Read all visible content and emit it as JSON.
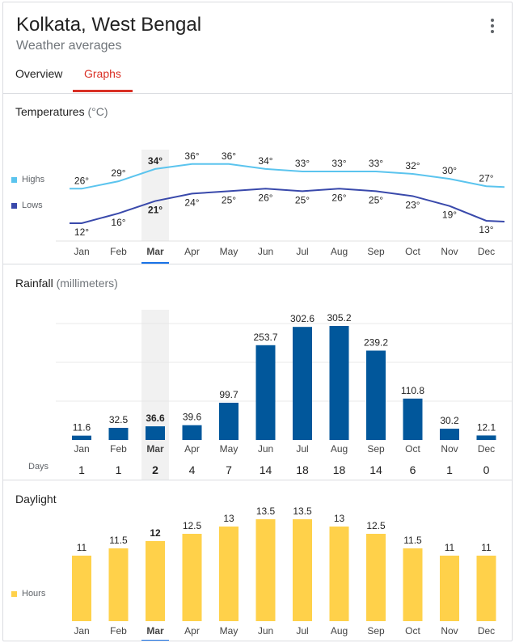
{
  "header": {
    "title": "Kolkata, West Bengal",
    "subtitle": "Weather averages",
    "tabs": [
      "Overview",
      "Graphs"
    ],
    "active_tab": "Graphs"
  },
  "colors": {
    "highs": "#5bc4ee",
    "lows": "#3949ab",
    "rain": "#01579b",
    "daylight": "#ffd14a",
    "selected_underline": "#1a73e8",
    "tab_active": "#d93025"
  },
  "months": [
    "Jan",
    "Feb",
    "Mar",
    "Apr",
    "May",
    "Jun",
    "Jul",
    "Aug",
    "Sep",
    "Oct",
    "Nov",
    "Dec"
  ],
  "selected_month": "Mar",
  "temperatures": {
    "title": "Temperatures",
    "unit": "(°C)",
    "legend_highs": "Highs",
    "legend_lows": "Lows"
  },
  "rainfall": {
    "title": "Rainfall",
    "unit": "(millimeters)",
    "days_label": "Days"
  },
  "daylight": {
    "title": "Daylight",
    "legend_hours": "Hours"
  },
  "chart_data": [
    {
      "type": "line",
      "title": "Temperatures (°C)",
      "categories": [
        "Jan",
        "Feb",
        "Mar",
        "Apr",
        "May",
        "Jun",
        "Jul",
        "Aug",
        "Sep",
        "Oct",
        "Nov",
        "Dec"
      ],
      "series": [
        {
          "name": "Highs",
          "values": [
            26,
            29,
            34,
            36,
            36,
            34,
            33,
            33,
            33,
            32,
            30,
            27
          ],
          "labels": [
            "26°",
            "29°",
            "34°",
            "36°",
            "36°",
            "34°",
            "33°",
            "33°",
            "33°",
            "32°",
            "30°",
            "27°"
          ]
        },
        {
          "name": "Lows",
          "values": [
            12,
            16,
            21,
            24,
            25,
            26,
            25,
            26,
            25,
            23,
            19,
            13
          ],
          "labels": [
            "12°",
            "16°",
            "21°",
            "24°",
            "25°",
            "26°",
            "25°",
            "26°",
            "25°",
            "23°",
            "19°",
            "13°"
          ]
        }
      ],
      "legend": "left"
    },
    {
      "type": "bar",
      "title": "Rainfall (millimeters)",
      "categories": [
        "Jan",
        "Feb",
        "Mar",
        "Apr",
        "May",
        "Jun",
        "Jul",
        "Aug",
        "Sep",
        "Oct",
        "Nov",
        "Dec"
      ],
      "values": [
        11.6,
        32.5,
        36.6,
        39.6,
        99.7,
        253.7,
        302.6,
        305.2,
        239.2,
        110.8,
        30.2,
        12.1
      ],
      "labels": [
        "11.6",
        "32.5",
        "36.6",
        "39.6",
        "99.7",
        "253.7",
        "302.6",
        "305.2",
        "239.2",
        "110.8",
        "30.2",
        "12.1"
      ],
      "days": [
        1,
        1,
        2,
        4,
        7,
        14,
        18,
        18,
        14,
        6,
        1,
        0
      ],
      "grid": true
    },
    {
      "type": "bar",
      "title": "Daylight",
      "categories": [
        "Jan",
        "Feb",
        "Mar",
        "Apr",
        "May",
        "Jun",
        "Jul",
        "Aug",
        "Sep",
        "Oct",
        "Nov",
        "Dec"
      ],
      "series": [
        {
          "name": "Hours",
          "values": [
            11,
            11.5,
            12,
            12.5,
            13,
            13.5,
            13.5,
            13,
            12.5,
            11.5,
            11,
            11
          ],
          "labels": [
            "11",
            "11.5",
            "12",
            "12.5",
            "13",
            "13.5",
            "13.5",
            "13",
            "12.5",
            "11.5",
            "11",
            "11"
          ]
        }
      ],
      "legend": "left"
    }
  ]
}
